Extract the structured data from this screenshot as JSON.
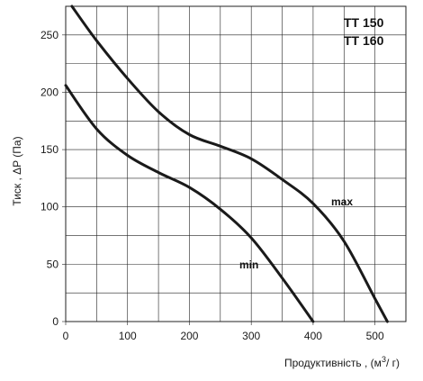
{
  "chart_data": {
    "type": "line",
    "title": "",
    "xlabel": "Продуктивність , (м³/ г)",
    "xlabel_main": "Продуктивність , (м",
    "xlabel_sup": "3",
    "xlabel_end": "/ г)",
    "ylabel": "Тиск , ΔP (Па)",
    "xlim": [
      0,
      550
    ],
    "ylim": [
      0,
      275
    ],
    "x_ticks": [
      0,
      100,
      200,
      300,
      400,
      500
    ],
    "y_ticks": [
      0,
      50,
      100,
      150,
      200,
      250
    ],
    "x_grid_step": 50,
    "y_grid_step": 25,
    "grid": true,
    "models": [
      "TT 150",
      "TT 160"
    ],
    "series": [
      {
        "name": "max",
        "x": [
          10,
          50,
          100,
          150,
          200,
          250,
          300,
          350,
          400,
          450,
          500,
          520
        ],
        "y": [
          275,
          245,
          212,
          183,
          163,
          153,
          142,
          124,
          103,
          70,
          20,
          0
        ]
      },
      {
        "name": "min",
        "x": [
          0,
          50,
          100,
          150,
          200,
          250,
          300,
          350,
          400
        ],
        "y": [
          206,
          168,
          145,
          130,
          117,
          98,
          73,
          38,
          0
        ]
      }
    ]
  }
}
